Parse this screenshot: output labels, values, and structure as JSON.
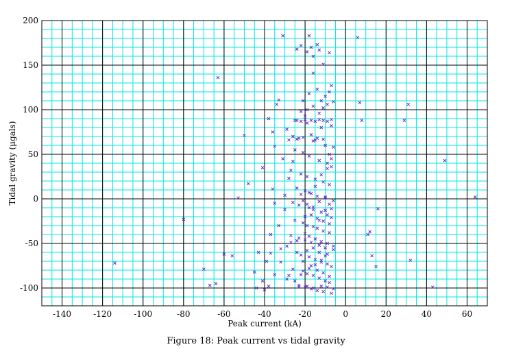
{
  "chart_data": {
    "type": "scatter",
    "xlabel": "Peak current (kA)",
    "ylabel": "Tidal gravity (μgals)",
    "caption": "Figure 18: Peak current vs tidal gravity",
    "xlim": [
      -150,
      70
    ],
    "ylim": [
      -120,
      200
    ],
    "xticks": [
      -140,
      -120,
      -100,
      -80,
      -60,
      -40,
      -20,
      0,
      20,
      40,
      60
    ],
    "yticks": [
      -100,
      -50,
      0,
      50,
      100,
      150,
      200
    ],
    "grid": true,
    "marker": "x",
    "colors": {
      "minor_grid": "#00e6e6",
      "major_grid": "#000000",
      "marker": "#6a2bc8"
    },
    "series": [
      {
        "points": [
          [
            -63,
            136
          ],
          [
            -80,
            -23
          ],
          [
            -114,
            -72
          ],
          [
            -70,
            -79
          ],
          [
            -67,
            -97
          ],
          [
            -64,
            -95
          ],
          [
            -60,
            -62
          ],
          [
            -56,
            -64
          ],
          [
            -53,
            1
          ],
          [
            -50,
            71
          ],
          [
            -48,
            17
          ],
          [
            -45,
            -82
          ],
          [
            -44,
            -100
          ],
          [
            -43,
            -60
          ],
          [
            -41,
            -92
          ],
          [
            -41,
            35
          ],
          [
            -31,
            183
          ],
          [
            -34,
            106
          ],
          [
            -33,
            111
          ],
          [
            -36,
            75
          ],
          [
            -35,
            59
          ],
          [
            -38,
            90
          ],
          [
            -36,
            11
          ],
          [
            -35,
            -5
          ],
          [
            -33,
            -30
          ],
          [
            -32,
            -56
          ],
          [
            -29,
            -90
          ],
          [
            -38,
            -98
          ],
          [
            -37,
            -61
          ],
          [
            -39,
            -70
          ],
          [
            -37,
            -40
          ],
          [
            -30,
            4
          ],
          [
            -28,
            23
          ],
          [
            -24,
            168
          ],
          [
            -22,
            172
          ],
          [
            -19,
            165
          ],
          [
            -18,
            183
          ],
          [
            -17,
            170
          ],
          [
            -16,
            160
          ],
          [
            -14,
            173
          ],
          [
            -13,
            167
          ],
          [
            -11,
            151
          ],
          [
            -8,
            164
          ],
          [
            -16,
            141
          ],
          [
            -18,
            118
          ],
          [
            -14,
            123
          ],
          [
            -12,
            110
          ],
          [
            -10,
            115
          ],
          [
            -8,
            120
          ],
          [
            -7,
            127
          ],
          [
            -21,
            110
          ],
          [
            -19,
            100
          ],
          [
            -16,
            104
          ],
          [
            -13,
            96
          ],
          [
            -11,
            102
          ],
          [
            -9,
            106
          ],
          [
            -6,
            109
          ],
          [
            -22,
            98
          ],
          [
            -20,
            93
          ],
          [
            -24,
            88
          ],
          [
            -19,
            85
          ],
          [
            -12,
            80
          ],
          [
            -7,
            82
          ],
          [
            -26,
            70
          ],
          [
            -23,
            68
          ],
          [
            -17,
            72
          ],
          [
            -15,
            66
          ],
          [
            -10,
            60
          ],
          [
            -6,
            58
          ],
          [
            -25,
            55
          ],
          [
            -21,
            52
          ],
          [
            -18,
            48
          ],
          [
            -13,
            43
          ],
          [
            -9,
            40
          ],
          [
            -7,
            36
          ],
          [
            -27,
            32
          ],
          [
            -22,
            28
          ],
          [
            -19,
            25
          ],
          [
            -15,
            22
          ],
          [
            -11,
            19
          ],
          [
            -8,
            16
          ],
          [
            -24,
            12
          ],
          [
            -20,
            9
          ],
          [
            -17,
            6
          ],
          [
            -14,
            3
          ],
          [
            -10,
            1
          ],
          [
            -6,
            -2
          ],
          [
            -26,
            -4
          ],
          [
            -23,
            -7
          ],
          [
            -18,
            -10
          ],
          [
            -16,
            -12
          ],
          [
            -12,
            -15
          ],
          [
            -9,
            -18
          ],
          [
            -7,
            -21
          ],
          [
            -25,
            -24
          ],
          [
            -21,
            -27
          ],
          [
            -19,
            -30
          ],
          [
            -14,
            -33
          ],
          [
            -11,
            -36
          ],
          [
            -8,
            -38
          ],
          [
            -27,
            -41
          ],
          [
            -23,
            -44
          ],
          [
            -20,
            -46
          ],
          [
            -17,
            -49
          ],
          [
            -13,
            -52
          ],
          [
            -10,
            -55
          ],
          [
            -6,
            -57
          ],
          [
            -24,
            -60
          ],
          [
            -22,
            -63
          ],
          [
            -18,
            -65
          ],
          [
            -15,
            -68
          ],
          [
            -12,
            -71
          ],
          [
            -9,
            -73
          ],
          [
            -7,
            -76
          ],
          [
            -26,
            -79
          ],
          [
            -21,
            -81
          ],
          [
            -19,
            -84
          ],
          [
            -16,
            -86
          ],
          [
            -13,
            -89
          ],
          [
            -10,
            -92
          ],
          [
            -8,
            -94
          ],
          [
            -23,
            -97
          ],
          [
            -20,
            -99
          ],
          [
            -17,
            -101
          ],
          [
            -14,
            -103
          ],
          [
            -11,
            -104
          ],
          [
            -7,
            -106
          ],
          [
            -25,
            -92
          ],
          [
            -22,
            -85
          ],
          [
            -18,
            -78
          ],
          [
            -15,
            -74
          ],
          [
            -12,
            -69
          ],
          [
            -9,
            -62
          ],
          [
            -6,
            -53
          ],
          [
            -24,
            -47
          ],
          [
            -20,
            -39
          ],
          [
            -16,
            -31
          ],
          [
            -13,
            -24
          ],
          [
            -10,
            -13
          ],
          [
            -8,
            -6
          ],
          [
            -21,
            -2
          ],
          [
            -18,
            7
          ],
          [
            -15,
            14
          ],
          [
            -12,
            27
          ],
          [
            -9,
            34
          ],
          [
            -7,
            45
          ],
          [
            -25,
            88
          ],
          [
            -22,
            87
          ],
          [
            -20,
            89
          ],
          [
            -17,
            88
          ],
          [
            -15,
            87
          ],
          [
            -13,
            89
          ],
          [
            -11,
            88
          ],
          [
            -9,
            87
          ],
          [
            -7,
            89
          ],
          [
            -28,
            66
          ],
          [
            -24,
            67
          ],
          [
            -21,
            69
          ],
          [
            -16,
            65
          ],
          [
            -14,
            68
          ],
          [
            -11,
            67
          ],
          [
            -8,
            50
          ],
          [
            -23,
            -99
          ],
          [
            -19,
            -98
          ],
          [
            -16,
            -100
          ],
          [
            -12,
            -98
          ],
          [
            -9,
            -99
          ],
          [
            -6,
            -101
          ],
          [
            -20,
            -20
          ],
          [
            -17,
            -18
          ],
          [
            -14,
            -22
          ],
          [
            -11,
            -25
          ],
          [
            -8,
            -28
          ],
          [
            -19,
            -58
          ],
          [
            -16,
            -55
          ],
          [
            -13,
            -60
          ],
          [
            -10,
            -64
          ],
          [
            -18,
            -42
          ],
          [
            -15,
            -45
          ],
          [
            -12,
            -48
          ],
          [
            -9,
            -50
          ],
          [
            -21,
            -70
          ],
          [
            -17,
            -75
          ],
          [
            -14,
            -80
          ],
          [
            -11,
            -83
          ],
          [
            -8,
            -87
          ],
          [
            -22,
            5
          ],
          [
            -19,
            -6
          ],
          [
            -16,
            -9
          ],
          [
            -13,
            -3
          ],
          [
            -10,
            2
          ],
          [
            -7,
            -11
          ],
          [
            -30,
            -12
          ],
          [
            -29,
            -53
          ],
          [
            -32,
            -71
          ],
          [
            -28,
            -86
          ],
          [
            -27,
            -49
          ],
          [
            -31,
            45
          ],
          [
            -29,
            78
          ],
          [
            -26,
            42
          ],
          [
            -40,
            -102
          ],
          [
            -35,
            -85
          ],
          [
            6,
            181
          ],
          [
            7,
            108
          ],
          [
            8,
            88
          ],
          [
            29,
            88
          ],
          [
            31,
            106
          ],
          [
            49,
            43
          ],
          [
            64,
            2
          ],
          [
            16,
            -11
          ],
          [
            12,
            -37
          ],
          [
            11,
            -40
          ],
          [
            13,
            -64
          ],
          [
            15,
            -76
          ],
          [
            32,
            -69
          ],
          [
            43,
            -99
          ]
        ]
      }
    ]
  }
}
